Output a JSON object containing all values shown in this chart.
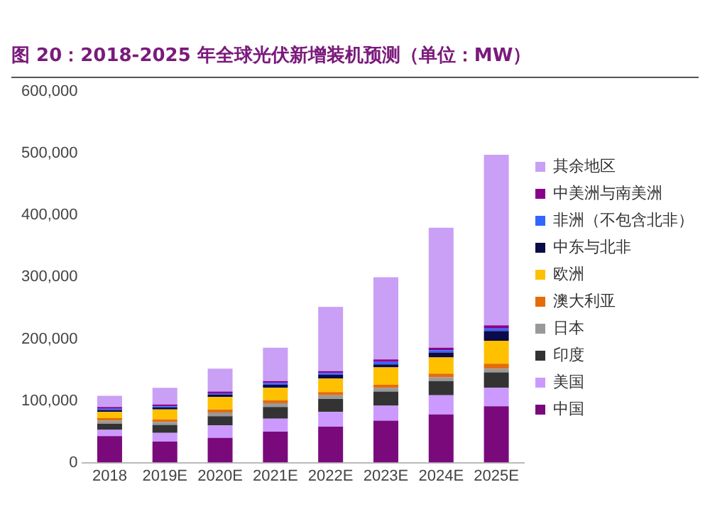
{
  "chart_data": {
    "type": "bar",
    "title": "图 20：2018-2025 年全球光伏新增装机预测（单位：MW）",
    "categories": [
      "2018",
      "2019E",
      "2020E",
      "2021E",
      "2022E",
      "2023E",
      "2024E",
      "2025E"
    ],
    "stacked": true,
    "ylim": [
      0,
      600000
    ],
    "yticks": [
      0,
      {
        "value": 100000,
        "label": "100,000"
      },
      {
        "value": 200000,
        "label": "200,000"
      },
      {
        "value": 300000,
        "label": "300,000"
      },
      {
        "value": 400000,
        "label": "400,000"
      },
      {
        "value": 500000,
        "label": "500,000"
      },
      {
        "value": 600000,
        "label": "600,000"
      }
    ],
    "grid": false,
    "legend": "right",
    "series": [
      {
        "name": "中国",
        "color": "#7a0a7c",
        "values": [
          43000,
          34000,
          40000,
          50000,
          58000,
          68000,
          78000,
          91000
        ]
      },
      {
        "name": "美国",
        "color": "#cc99ff",
        "values": [
          10000,
          14000,
          20000,
          21000,
          24000,
          24000,
          31000,
          30000
        ]
      },
      {
        "name": "印度",
        "color": "#333333",
        "values": [
          10000,
          13000,
          15000,
          19000,
          21000,
          23000,
          23000,
          25000
        ]
      },
      {
        "name": "日本",
        "color": "#999999",
        "values": [
          5000,
          5000,
          6000,
          6000,
          6000,
          6000,
          6000,
          6000
        ]
      },
      {
        "name": "澳大利亚",
        "color": "#e46c0a",
        "values": [
          4000,
          4000,
          5000,
          5000,
          5000,
          5000,
          6000,
          8000
        ]
      },
      {
        "name": "欧洲",
        "color": "#ffc000",
        "values": [
          10000,
          16000,
          20000,
          20000,
          22000,
          28000,
          26000,
          37000
        ]
      },
      {
        "name": "中东与北非",
        "color": "#0b0b4a",
        "values": [
          3000,
          3000,
          4000,
          5000,
          6000,
          5000,
          8000,
          16000
        ]
      },
      {
        "name": "非洲（不包含北非）",
        "color": "#3366ff",
        "values": [
          2000,
          2000,
          2000,
          3000,
          3000,
          4000,
          4000,
          4000
        ]
      },
      {
        "name": "中美洲与南美洲",
        "color": "#8b008b",
        "values": [
          3000,
          3000,
          3000,
          3000,
          3000,
          4000,
          4000,
          5000
        ]
      },
      {
        "name": "其余地区",
        "color": "#c9a0f5",
        "values": [
          18000,
          27000,
          37000,
          54000,
          104000,
          133000,
          194000,
          276000
        ]
      }
    ]
  }
}
